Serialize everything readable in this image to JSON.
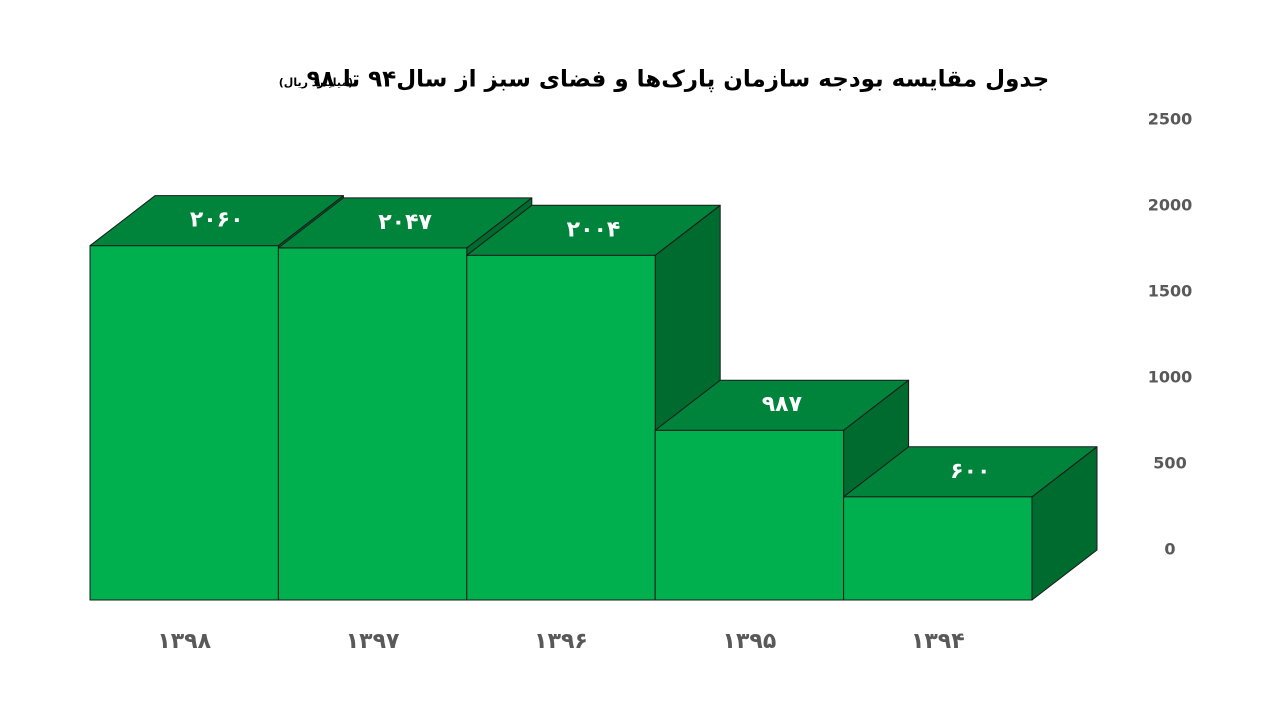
{
  "chart_data": {
    "type": "bar3d",
    "title": "جدول مقایسه بودجه سازمان پارک‌ها و فضای سبز از سال۹۴ تا ۹۸",
    "subtitle": "(میلیارد ریال)",
    "categories": [
      "۱۳۹۸",
      "۱۳۹۷",
      "۱۳۹۶",
      "۱۳۹۵",
      "۱۳۹۴"
    ],
    "values": [
      2060,
      2047,
      2004,
      987,
      600
    ],
    "value_labels": [
      "۲۰۶۰",
      "۲۰۴۷",
      "۲۰۰۴",
      "۹۸۷",
      "۶۰۰"
    ],
    "colors": {
      "front": "#00b04f",
      "top": "#00843c",
      "side": "#006b2e"
    },
    "ylim": [
      0,
      2500
    ],
    "yticks": [
      0,
      500,
      1000,
      1500,
      2000,
      2500
    ],
    "yaxis_position": "right",
    "grid": false
  }
}
